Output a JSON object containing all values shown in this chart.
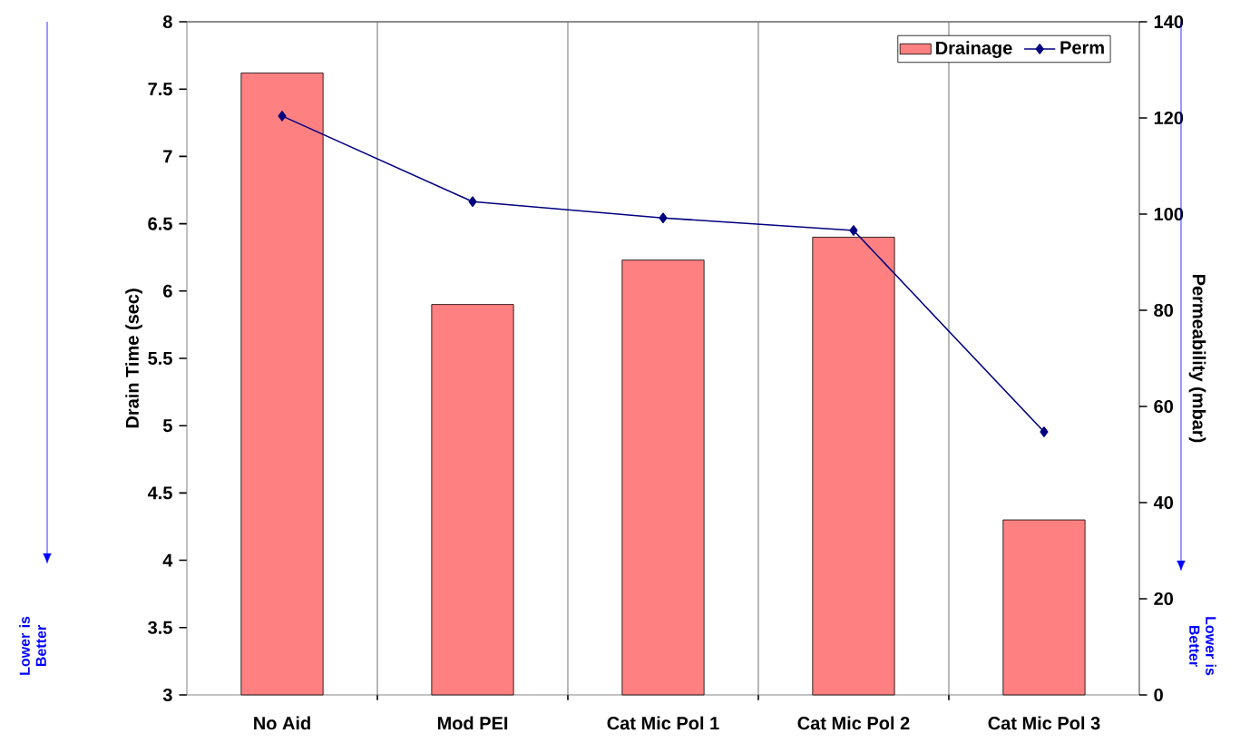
{
  "chart_data": {
    "type": "bar",
    "categories": [
      "No Aid",
      "Mod PEI",
      "Cat Mic Pol 1",
      "Cat Mic Pol 2",
      "Cat Mic Pol 3"
    ],
    "ylabel": "Drain Time (sec)",
    "y2label": "Permeability (mbar)",
    "ylim": [
      3,
      8
    ],
    "yticks": [
      3,
      3.5,
      4,
      4.5,
      5,
      5.5,
      6,
      6.5,
      7,
      7.5,
      8
    ],
    "y2lim": [
      0,
      140
    ],
    "y2ticks": [
      0,
      20,
      40,
      60,
      80,
      100,
      120,
      140
    ],
    "series": [
      {
        "name": "Drainage",
        "color": "#ff8080",
        "values": [
          7.62,
          5.9,
          6.23,
          6.4,
          4.3
        ]
      },
      {
        "name": "Perm",
        "type": "line",
        "axis": "y2",
        "color": "#000080",
        "values": [
          120.4,
          102.6,
          99.2,
          96.6,
          54.7
        ]
      }
    ],
    "marker": "diamond",
    "line_style": "solid",
    "grid": "x",
    "legend": "top right",
    "annotations": [
      "Lower is Better",
      "Lower is Better"
    ]
  }
}
